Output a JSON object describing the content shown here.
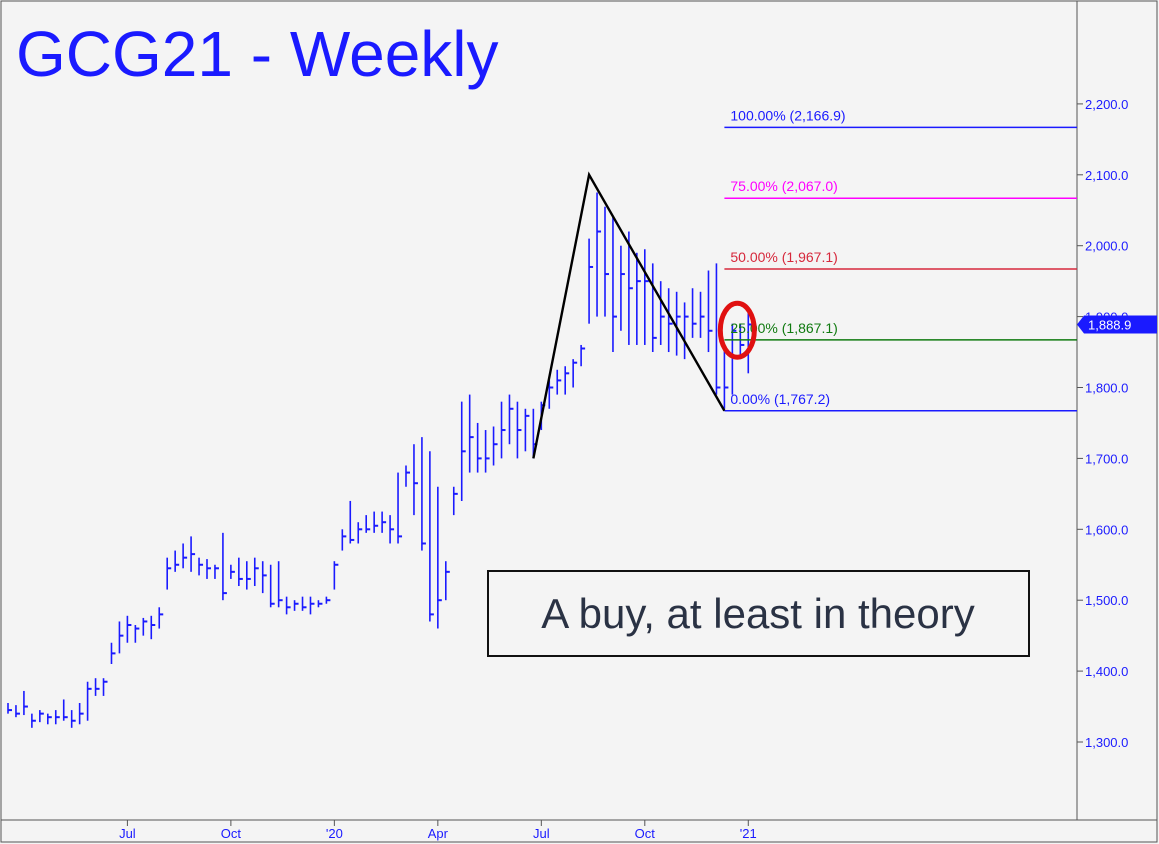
{
  "chart_data": {
    "type": "ohlc",
    "title": "GCG21 - Weekly",
    "ylim": [
      1200,
      2320
    ],
    "y_ticks": [
      1300,
      1400,
      1500,
      1600,
      1700,
      1800,
      1900,
      2000,
      2100,
      2200
    ],
    "y_tick_labels": [
      "1,300.0",
      "1,400.0",
      "1,500.0",
      "1,600.0",
      "1,700.0",
      "1,800.0",
      "1,900.0",
      "2,000.0",
      "2,100.0",
      "2,200.0"
    ],
    "x_labels": [
      {
        "week": 16,
        "text": "Jul"
      },
      {
        "week": 29,
        "text": "Oct"
      },
      {
        "week": 42,
        "text": "'20"
      },
      {
        "week": 55,
        "text": "Apr"
      },
      {
        "week": 68,
        "text": "Jul"
      },
      {
        "week": 81,
        "text": "Oct"
      },
      {
        "week": 94,
        "text": "'21"
      }
    ],
    "weeks": [
      1,
      2,
      3,
      4,
      5,
      6,
      7,
      8,
      9,
      10,
      11,
      12,
      13,
      14,
      15,
      16,
      17,
      18,
      19,
      20,
      21,
      22,
      23,
      24,
      25,
      26,
      27,
      28,
      29,
      30,
      31,
      32,
      33,
      34,
      35,
      36,
      37,
      38,
      39,
      40,
      41,
      42,
      43,
      44,
      45,
      46,
      47,
      48,
      49,
      50,
      51,
      52,
      53,
      54,
      55,
      56,
      57,
      58,
      59,
      60,
      61,
      62,
      63,
      64,
      65,
      66,
      67,
      68,
      69,
      70,
      71,
      72,
      73,
      74,
      75,
      76,
      77,
      78,
      79,
      80,
      81,
      82,
      83,
      84,
      85,
      86,
      87,
      88,
      89,
      90,
      91,
      92,
      93,
      94
    ],
    "high": [
      1355,
      1352,
      1372,
      1340,
      1345,
      1340,
      1345,
      1360,
      1345,
      1355,
      1385,
      1390,
      1390,
      1440,
      1470,
      1478,
      1465,
      1475,
      1478,
      1490,
      1560,
      1570,
      1580,
      1590,
      1560,
      1558,
      1550,
      1595,
      1550,
      1560,
      1555,
      1560,
      1555,
      1550,
      1555,
      1505,
      1500,
      1505,
      1505,
      1500,
      1505,
      1555,
      1600,
      1640,
      1610,
      1620,
      1625,
      1625,
      1620,
      1680,
      1690,
      1720,
      1730,
      1710,
      1660,
      1555,
      1660,
      1780,
      1790,
      1750,
      1740,
      1745,
      1780,
      1790,
      1780,
      1770,
      1770,
      1780,
      1810,
      1825,
      1830,
      1840,
      1860,
      2010,
      2075,
      2055,
      2040,
      2000,
      2020,
      1990,
      1995,
      1975,
      1950,
      1940,
      1935,
      1920,
      1940,
      1935,
      1965,
      1975,
      1860,
      1890,
      1890,
      1910
    ],
    "low": [
      1340,
      1335,
      1338,
      1320,
      1328,
      1325,
      1325,
      1330,
      1320,
      1325,
      1330,
      1365,
      1365,
      1410,
      1425,
      1440,
      1440,
      1450,
      1445,
      1460,
      1515,
      1540,
      1545,
      1540,
      1535,
      1530,
      1530,
      1500,
      1530,
      1520,
      1515,
      1520,
      1510,
      1490,
      1490,
      1480,
      1485,
      1485,
      1480,
      1490,
      1495,
      1515,
      1570,
      1580,
      1580,
      1595,
      1595,
      1595,
      1580,
      1580,
      1660,
      1620,
      1570,
      1470,
      1460,
      1500,
      1620,
      1640,
      1680,
      1680,
      1680,
      1690,
      1700,
      1720,
      1700,
      1710,
      1700,
      1740,
      1770,
      1790,
      1790,
      1800,
      1830,
      1890,
      1900,
      1900,
      1850,
      1880,
      1860,
      1860,
      1860,
      1850,
      1860,
      1850,
      1845,
      1840,
      1870,
      1870,
      1850,
      1790,
      1770,
      1790,
      1840,
      1820
    ],
    "close": [
      1345,
      1340,
      1350,
      1330,
      1340,
      1335,
      1335,
      1335,
      1330,
      1340,
      1375,
      1375,
      1385,
      1425,
      1450,
      1465,
      1460,
      1470,
      1465,
      1480,
      1545,
      1550,
      1560,
      1565,
      1550,
      1545,
      1545,
      1510,
      1540,
      1530,
      1530,
      1545,
      1535,
      1495,
      1500,
      1490,
      1495,
      1490,
      1495,
      1495,
      1500,
      1550,
      1590,
      1585,
      1600,
      1600,
      1605,
      1610,
      1600,
      1590,
      1680,
      1665,
      1580,
      1480,
      1500,
      1540,
      1650,
      1710,
      1730,
      1700,
      1700,
      1720,
      1740,
      1770,
      1740,
      1760,
      1720,
      1775,
      1800,
      1810,
      1820,
      1835,
      1855,
      1970,
      2020,
      1960,
      1900,
      1960,
      1940,
      1950,
      1950,
      1870,
      1900,
      1890,
      1900,
      1900,
      1890,
      1900,
      1880,
      1800,
      1800,
      1880,
      1860,
      1888.9
    ],
    "pattern_line": [
      {
        "week": 67,
        "price": 1700
      },
      {
        "week": 74,
        "price": 2100
      },
      {
        "week": 91,
        "price": 1767.2
      }
    ],
    "fib_levels": [
      {
        "label": "100.00% (2,166.9)",
        "price": 2166.9,
        "color": "#1a1aff"
      },
      {
        "label": "75.00% (2,067.0)",
        "price": 2067.0,
        "color": "#ff00ff"
      },
      {
        "label": "50.00% (1,967.1)",
        "price": 1967.1,
        "color": "#d6283c"
      },
      {
        "label": "25.00% (1,867.1)",
        "price": 1867.1,
        "color": "#107a10"
      },
      {
        "label": "0.00% (1,767.2)",
        "price": 1767.2,
        "color": "#1a1aff"
      }
    ],
    "fib_start_week": 91,
    "last_price_label": "1,888.9",
    "last_price": 1888.9,
    "highlight_circle": {
      "week": 93,
      "price": 1885
    },
    "annotation": "A buy, at least in theory",
    "colors": {
      "bars": "#1a1aff",
      "title": "#1a1aff",
      "background": "#f4f4f4",
      "pattern": "#000000",
      "circle": "#e01010"
    }
  }
}
